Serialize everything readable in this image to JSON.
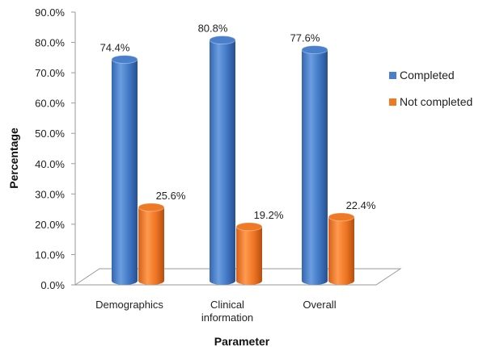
{
  "chart_data": {
    "type": "bar",
    "style": "3d-cylinder",
    "title": "",
    "xlabel": "Parameter",
    "ylabel": "Percentage",
    "ylim": [
      0,
      90
    ],
    "y_ticks": [
      "0.0%",
      "10.0%",
      "20.0%",
      "30.0%",
      "40.0%",
      "50.0%",
      "60.0%",
      "70.0%",
      "80.0%",
      "90.0%"
    ],
    "categories": [
      [
        "Demographics"
      ],
      [
        "Clinical",
        "information"
      ],
      [
        "Overall"
      ]
    ],
    "series": [
      {
        "name": "Completed",
        "color": "#4a7fcb",
        "values": [
          74.4,
          80.8,
          77.6
        ],
        "labels": [
          "74.4%",
          "80.8%",
          "77.6%"
        ]
      },
      {
        "name": "Not completed",
        "color": "#ef7a25",
        "values": [
          25.6,
          19.2,
          22.4
        ],
        "labels": [
          "25.6%",
          "19.2%",
          "22.4%"
        ]
      }
    ],
    "legend_position": "right",
    "grid": false
  }
}
